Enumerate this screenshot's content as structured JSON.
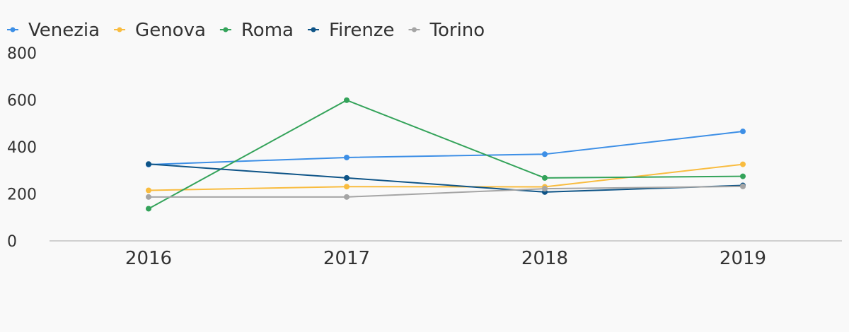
{
  "chart_data": {
    "type": "line",
    "title": "",
    "xlabel": "",
    "ylabel": "",
    "categories": [
      "2016",
      "2017",
      "2018",
      "2019"
    ],
    "ylim": [
      0,
      800
    ],
    "yticks": [
      0,
      200,
      400,
      600,
      800
    ],
    "grid": false,
    "legend_position": "top-left",
    "series": [
      {
        "name": "Venezia",
        "color": "#3d8fe6",
        "values": [
          325,
          355,
          369,
          466
        ]
      },
      {
        "name": "Genova",
        "color": "#f9bc3f",
        "values": [
          215,
          231,
          230,
          326
        ]
      },
      {
        "name": "Roma",
        "color": "#34a35a",
        "values": [
          137,
          599,
          268,
          275
        ]
      },
      {
        "name": "Firenze",
        "color": "#0e5487",
        "values": [
          327,
          268,
          208,
          236
        ]
      },
      {
        "name": "Torino",
        "color": "#a5a5a5",
        "values": [
          187,
          187,
          222,
          232
        ]
      }
    ]
  }
}
